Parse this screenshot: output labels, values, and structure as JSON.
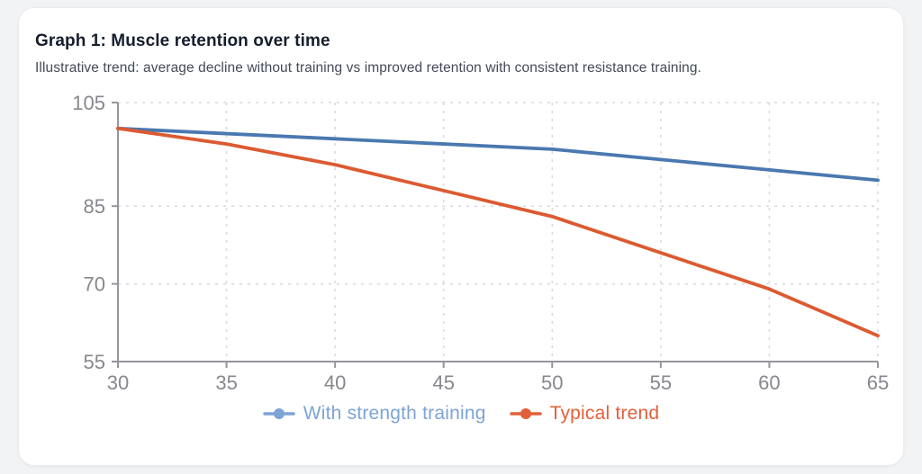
{
  "chart_data": {
    "type": "line",
    "title": "Graph 1: Muscle retention over time",
    "subtitle": "Illustrative trend: average decline without training vs improved retention with consistent resistance training.",
    "xlabel": "",
    "ylabel": "",
    "x": [
      30,
      35,
      40,
      45,
      50,
      55,
      60,
      65
    ],
    "x_ticks": [
      30,
      35,
      40,
      45,
      50,
      55,
      60,
      65
    ],
    "y_ticks": [
      55,
      70,
      85,
      105
    ],
    "xlim": [
      30,
      65
    ],
    "ylim": [
      55,
      105
    ],
    "grid": true,
    "grid_style": "dashed",
    "legend_position": "bottom",
    "series": [
      {
        "name": "With strength training",
        "values": [
          100,
          99,
          98,
          97,
          96,
          94,
          92,
          90
        ],
        "color": "#4a78b0",
        "legend_color": "#7da4d6"
      },
      {
        "name": "Typical trend",
        "values": [
          100,
          97,
          93,
          88,
          83,
          76,
          69,
          60
        ],
        "color": "#dc5a31",
        "legend_color": "#e2603a"
      }
    ],
    "axis_color": "#95959c",
    "grid_color": "#d8d9dd",
    "tick_label_color": "#87878d"
  },
  "page": {
    "background": "#f2f3f5",
    "card_background": "#ffffff"
  }
}
